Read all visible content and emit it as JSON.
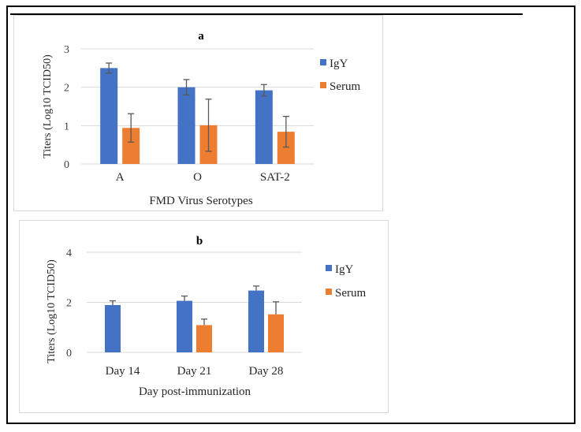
{
  "colors": {
    "igy": "#4472C4",
    "serum": "#ED7D31",
    "error": "#595959",
    "grid": "#d9d9d9"
  },
  "chart_data": [
    {
      "type": "bar",
      "title": "a",
      "xlabel": "FMD Virus  Serotypes",
      "ylabel": "Titers (Log10 TCID50)",
      "categories": [
        "A",
        "O",
        "SAT-2"
      ],
      "ylim": [
        0,
        3
      ],
      "yticks": [
        "0",
        "1",
        "2",
        "3"
      ],
      "grid": true,
      "legend_position": "right",
      "error_bars": "both",
      "series": [
        {
          "name": "IgY",
          "values": [
            2.5,
            2.0,
            1.92
          ],
          "errors": [
            0.13,
            0.2,
            0.15
          ]
        },
        {
          "name": "Serum",
          "values": [
            0.94,
            1.01,
            0.84
          ],
          "errors": [
            0.37,
            0.68,
            0.4
          ]
        }
      ]
    },
    {
      "type": "bar",
      "title": "b",
      "xlabel": "Day post-immunization",
      "ylabel": "Titers  (Log10 TCID50)",
      "categories": [
        "Day 14",
        "Day 21",
        "Day 28"
      ],
      "ylim": [
        0,
        4
      ],
      "yticks": [
        "0",
        "2",
        "4"
      ],
      "grid": true,
      "legend_position": "right",
      "error_bars": "plus",
      "series": [
        {
          "name": "IgY",
          "values": [
            1.89,
            2.06,
            2.47
          ],
          "errors": [
            0.17,
            0.19,
            0.18
          ]
        },
        {
          "name": "Serum",
          "values": [
            0,
            1.09,
            1.52
          ],
          "errors": [
            0,
            0.24,
            0.5
          ]
        }
      ]
    }
  ]
}
